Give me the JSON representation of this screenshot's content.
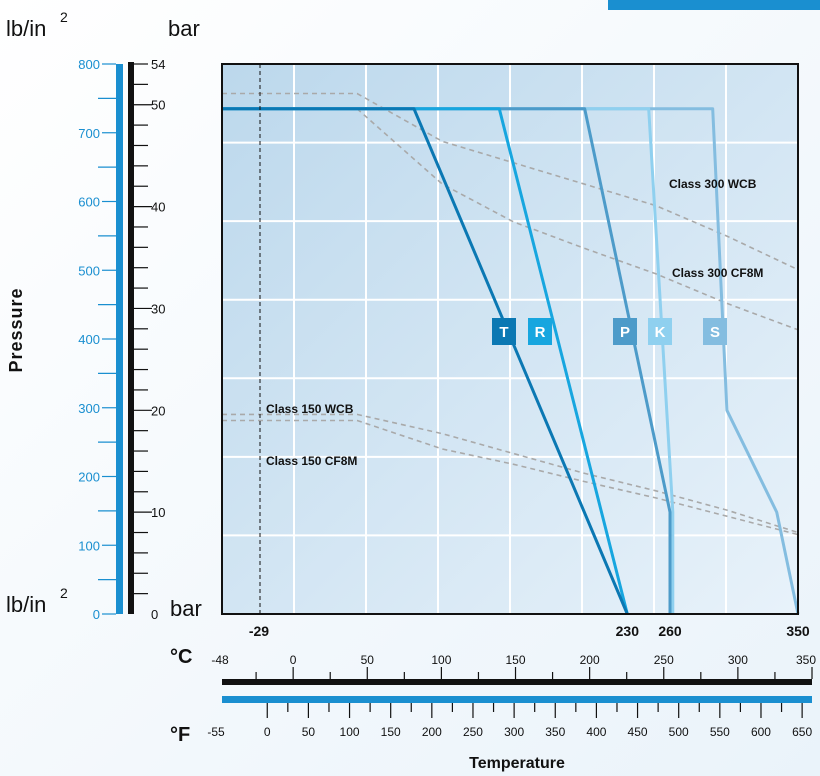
{
  "chart_data": {
    "type": "line",
    "units": {
      "psi_top": "lb/in",
      "psi_bottom": "lb/in",
      "sup": "2",
      "bar_top": "bar",
      "bar_bottom": "bar",
      "celsius": "°C",
      "fahrenheit": "°F"
    },
    "ylabel": "Pressure",
    "xlabel": "Temperature",
    "psi_axis": {
      "range": [
        0,
        800
      ],
      "labels": [
        0,
        100,
        200,
        300,
        400,
        500,
        600,
        700,
        800
      ]
    },
    "bar_axis": {
      "range": [
        0,
        54
      ],
      "labels": [
        0,
        10,
        20,
        30,
        40,
        50,
        54
      ]
    },
    "celsius_axis": {
      "range": [
        -48,
        350
      ],
      "labels": [
        -48,
        0,
        50,
        100,
        150,
        200,
        250,
        300,
        350
      ]
    },
    "fahrenheit_axis": {
      "range": [
        -55,
        662
      ],
      "labels": [
        -55,
        0,
        50,
        100,
        150,
        200,
        250,
        300,
        350,
        400,
        450,
        500,
        550,
        600,
        650
      ]
    },
    "highlight_temps": [
      {
        "value": -29,
        "label": "-29"
      },
      {
        "value": 230,
        "label": "230"
      },
      {
        "value": 260,
        "label": "260"
      },
      {
        "value": 350,
        "label": "350"
      }
    ],
    "series": [
      {
        "name": "T",
        "color": "#0b78b3",
        "points": [
          [
            -55,
            49.6
          ],
          [
            80,
            49.6
          ],
          [
            230,
            0
          ]
        ]
      },
      {
        "name": "R",
        "color": "#17a6df",
        "points": [
          [
            -55,
            49.6
          ],
          [
            140,
            49.6
          ],
          [
            230,
            0
          ]
        ]
      },
      {
        "name": "P",
        "color": "#4d9bc9",
        "points": [
          [
            -55,
            49.6
          ],
          [
            200,
            49.6
          ],
          [
            260,
            10
          ],
          [
            260,
            0
          ]
        ]
      },
      {
        "name": "K",
        "color": "#8fd0ef",
        "points": [
          [
            -55,
            49.6
          ],
          [
            245,
            49.6
          ],
          [
            262,
            10
          ],
          [
            262,
            0
          ]
        ]
      },
      {
        "name": "S",
        "color": "#84bde0",
        "points": [
          [
            -55,
            49.6
          ],
          [
            290,
            49.6
          ],
          [
            300,
            20
          ],
          [
            335,
            10
          ],
          [
            350,
            0
          ]
        ]
      }
    ],
    "rating_curves": [
      {
        "name": "Class 300 WCB",
        "points": [
          [
            -55,
            51.1
          ],
          [
            40,
            51.1
          ],
          [
            100,
            46.4
          ],
          [
            200,
            42.2
          ],
          [
            250,
            40.1
          ],
          [
            300,
            37.1
          ],
          [
            350,
            33.8
          ]
        ]
      },
      {
        "name": "Class 300 CF8M",
        "points": [
          [
            -55,
            49.6
          ],
          [
            40,
            49.6
          ],
          [
            100,
            42.2
          ],
          [
            150,
            38.5
          ],
          [
            200,
            35.9
          ],
          [
            250,
            33.4
          ],
          [
            300,
            30.5
          ],
          [
            350,
            27.9
          ]
        ]
      },
      {
        "name": "Class 150 WCB",
        "points": [
          [
            -55,
            19.6
          ],
          [
            40,
            19.6
          ],
          [
            100,
            17.7
          ],
          [
            200,
            13.8
          ],
          [
            250,
            12.1
          ],
          [
            300,
            10.2
          ],
          [
            350,
            8.0
          ]
        ]
      },
      {
        "name": "Class 150 CF8M",
        "points": [
          [
            -55,
            19.0
          ],
          [
            40,
            19.0
          ],
          [
            100,
            16.2
          ],
          [
            150,
            14.7
          ],
          [
            200,
            13.0
          ],
          [
            250,
            11.4
          ],
          [
            300,
            9.6
          ],
          [
            350,
            7.8
          ]
        ]
      }
    ]
  }
}
